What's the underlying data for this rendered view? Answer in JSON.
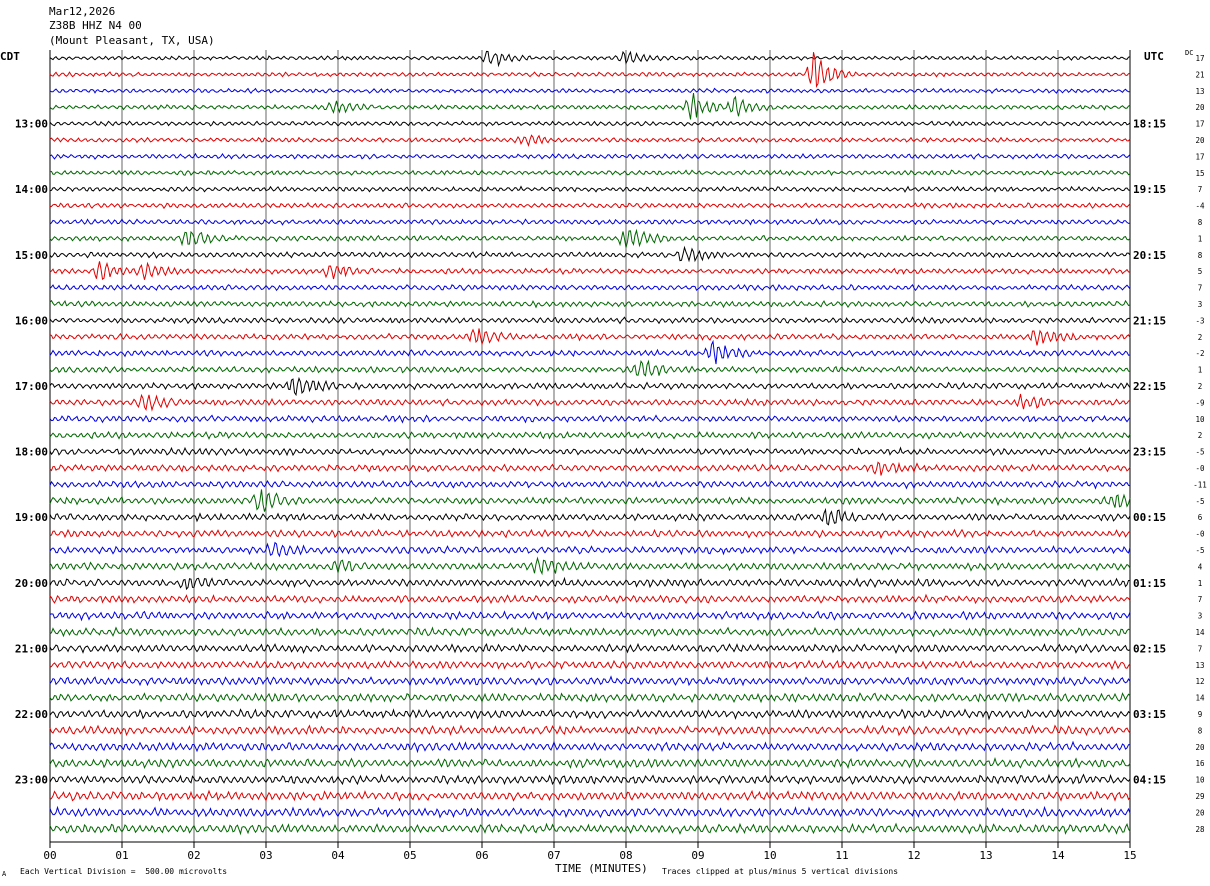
{
  "header": {
    "date": "Mar12,2026",
    "station": "Z38B HHZ N4 00",
    "location": "(Mount Pleasant, TX, USA)"
  },
  "left_axis_label": "CDT",
  "right_axis_label": "UTC",
  "dc_label": "DC",
  "footer": {
    "scale_note": "Each Vertical Division =  500.00 microvolts",
    "clip_note": "Traces clipped at plus/minus 5 vertical divisions",
    "corner_mark": "A"
  },
  "chart_data": {
    "type": "line",
    "title": "",
    "xlabel": "TIME (MINUTES)",
    "ylabel": "",
    "xlim": [
      0,
      15
    ],
    "x_ticks": [
      "00",
      "01",
      "02",
      "03",
      "04",
      "05",
      "06",
      "07",
      "08",
      "09",
      "10",
      "11",
      "12",
      "13",
      "14",
      "15"
    ],
    "grid": "vertical lines at each minute",
    "trace_count": 48,
    "trace_minutes": 15,
    "trace_colors": [
      "#000000",
      "#e00000",
      "#0000e0",
      "#006600"
    ],
    "cdt_hour_labels": [
      "13:00",
      "14:00",
      "15:00",
      "16:00",
      "17:00",
      "18:00",
      "19:00",
      "20:00",
      "21:00",
      "22:00",
      "23:00"
    ],
    "utc_labels": [
      "18:15",
      "19:15",
      "20:15",
      "21:15",
      "22:15",
      "23:15",
      "00:15",
      "01:15",
      "02:15",
      "03:15",
      "04:15"
    ],
    "first_labeled_trace": 4,
    "dc_offsets": [
      "17",
      "21",
      "13",
      "20",
      "17",
      "20",
      "17",
      "15",
      "7",
      "-4",
      "8",
      "1",
      "8",
      "5",
      "7",
      "3",
      "-3",
      "2",
      "-2",
      "1",
      "2",
      "-9",
      "10",
      "2",
      "-5",
      "-0",
      "-11",
      "-5",
      "6",
      "-0",
      "-5",
      "4",
      "1",
      "7",
      "3",
      "14",
      "7",
      "13",
      "12",
      "14",
      "9",
      "8",
      "20",
      "16",
      "10",
      "29",
      "20",
      "28"
    ],
    "events": [
      {
        "trace": 0,
        "minute": 6.1,
        "amp": 2.2
      },
      {
        "trace": 0,
        "minute": 8.0,
        "amp": 1.5
      },
      {
        "trace": 1,
        "minute": 10.6,
        "amp": 5.0
      },
      {
        "trace": 3,
        "minute": 3.9,
        "amp": 2.0
      },
      {
        "trace": 3,
        "minute": 8.9,
        "amp": 3.5
      },
      {
        "trace": 3,
        "minute": 9.5,
        "amp": 2.2
      },
      {
        "trace": 5,
        "minute": 6.6,
        "amp": 1.5
      },
      {
        "trace": 11,
        "minute": 1.9,
        "amp": 2.6
      },
      {
        "trace": 11,
        "minute": 8.0,
        "amp": 3.4
      },
      {
        "trace": 12,
        "minute": 8.8,
        "amp": 1.8
      },
      {
        "trace": 13,
        "minute": 0.7,
        "amp": 2.2
      },
      {
        "trace": 13,
        "minute": 1.3,
        "amp": 2.0
      },
      {
        "trace": 13,
        "minute": 3.9,
        "amp": 1.8
      },
      {
        "trace": 17,
        "minute": 5.9,
        "amp": 2.0
      },
      {
        "trace": 17,
        "minute": 13.7,
        "amp": 2.6
      },
      {
        "trace": 18,
        "minute": 9.2,
        "amp": 3.0
      },
      {
        "trace": 19,
        "minute": 8.2,
        "amp": 2.6
      },
      {
        "trace": 20,
        "minute": 3.4,
        "amp": 3.4
      },
      {
        "trace": 21,
        "minute": 1.3,
        "amp": 1.8
      },
      {
        "trace": 21,
        "minute": 13.5,
        "amp": 1.8
      },
      {
        "trace": 25,
        "minute": 11.5,
        "amp": 1.7
      },
      {
        "trace": 27,
        "minute": 2.9,
        "amp": 3.0
      },
      {
        "trace": 27,
        "minute": 14.8,
        "amp": 2.0
      },
      {
        "trace": 28,
        "minute": 10.8,
        "amp": 2.4
      },
      {
        "trace": 30,
        "minute": 3.1,
        "amp": 1.5
      },
      {
        "trace": 31,
        "minute": 6.8,
        "amp": 2.4
      },
      {
        "trace": 31,
        "minute": 4.0,
        "amp": 1.4
      },
      {
        "trace": 32,
        "minute": 1.9,
        "amp": 1.3
      }
    ]
  }
}
